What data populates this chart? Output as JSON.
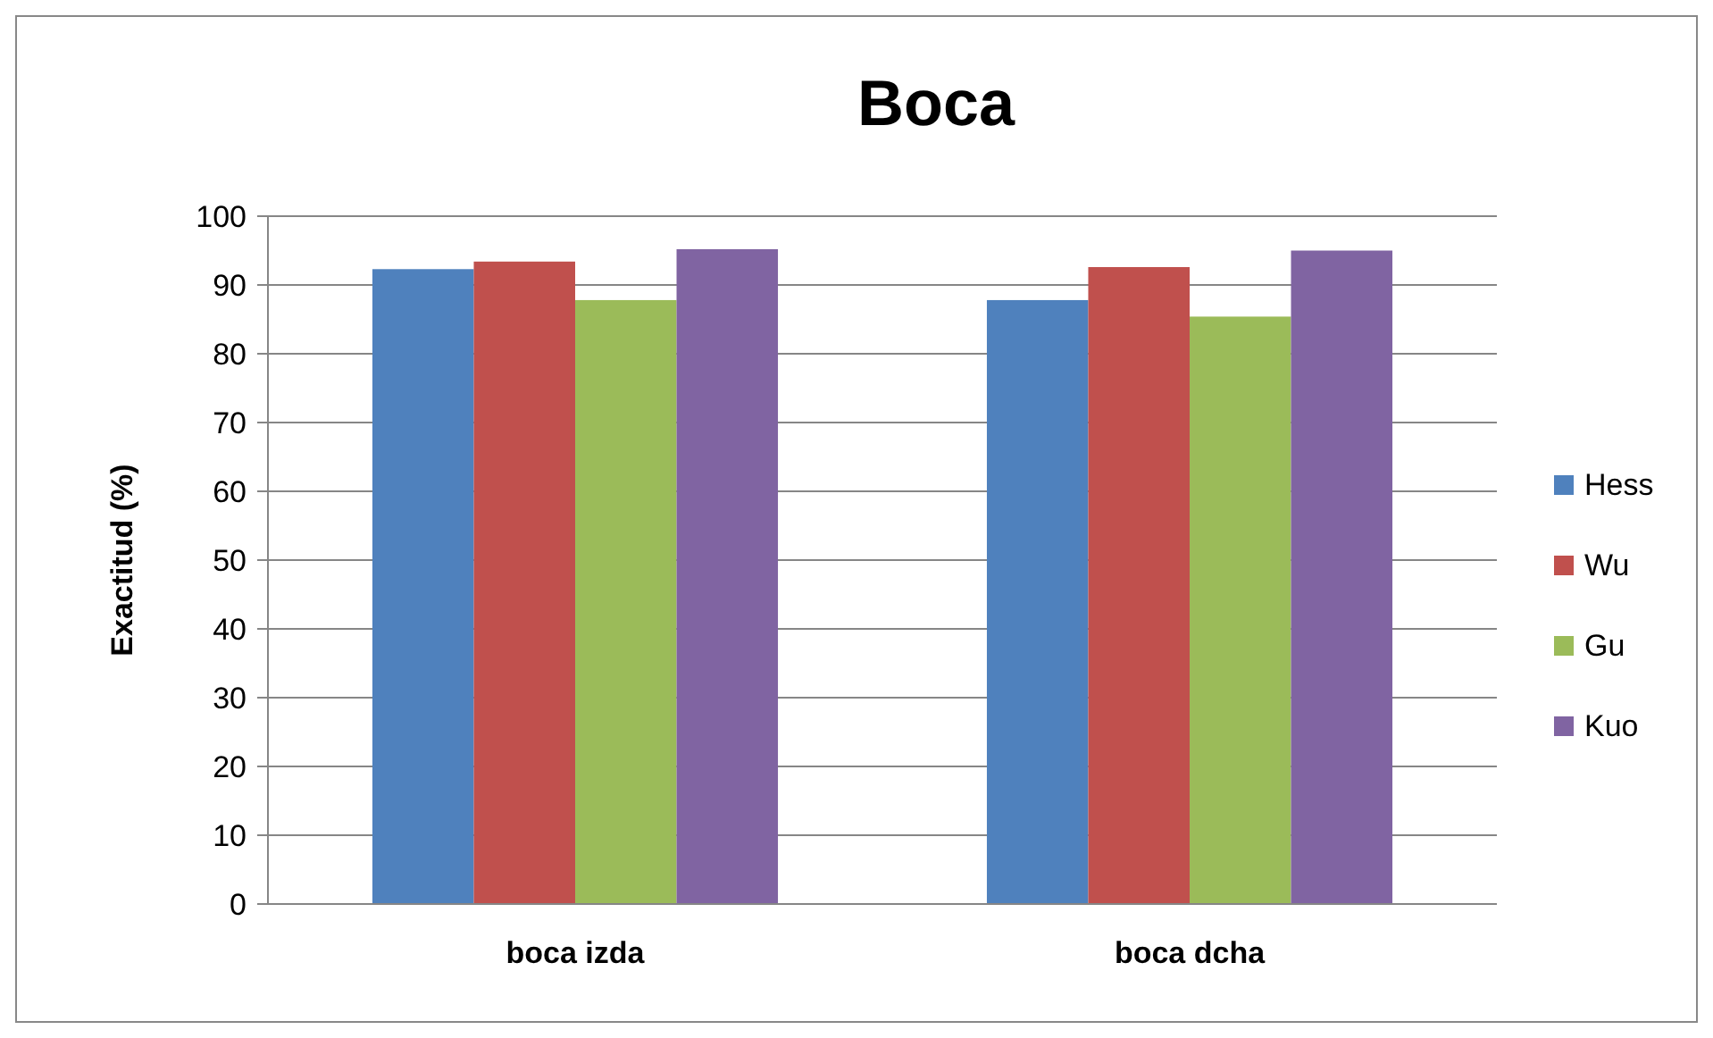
{
  "chart_data": {
    "type": "bar",
    "title": "Boca",
    "ylabel": "Exactitud (%)",
    "categories": [
      "boca izda",
      "boca dcha"
    ],
    "series": [
      {
        "name": "Hess",
        "color": "#4f81bd",
        "values": [
          92.3,
          87.8
        ]
      },
      {
        "name": "Wu",
        "color": "#c0504d",
        "values": [
          93.4,
          92.6
        ]
      },
      {
        "name": "Gu",
        "color": "#9bbb59",
        "values": [
          87.8,
          85.4
        ]
      },
      {
        "name": "Kuo",
        "color": "#8064a2",
        "values": [
          95.2,
          95.0
        ]
      }
    ],
    "ylim": [
      0,
      100
    ],
    "yticks": [
      0,
      10,
      20,
      30,
      40,
      50,
      60,
      70,
      80,
      90,
      100
    ],
    "grid": "y",
    "legend": "right"
  }
}
